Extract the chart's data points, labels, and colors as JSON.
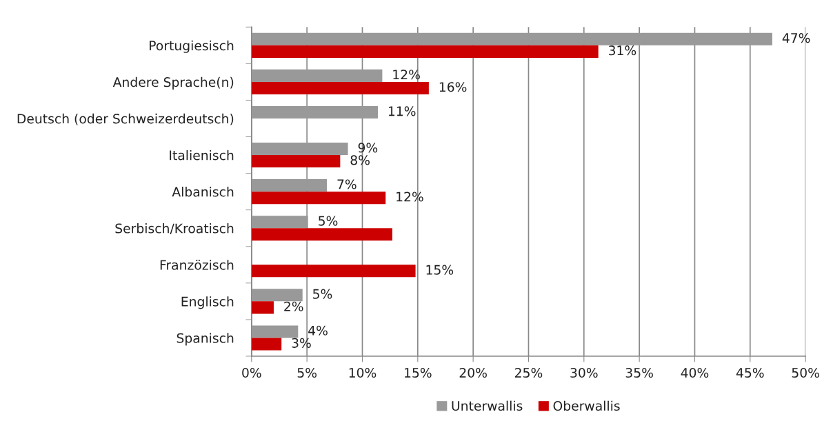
{
  "chart_data": {
    "type": "bar",
    "orientation": "horizontal",
    "categories": [
      "Portugiesisch",
      "Andere Sprache(n)",
      "Deutsch (oder Schweizerdeutsch)",
      "Italienisch",
      "Albanisch",
      "Serbisch/Kroatisch",
      "Franzözisch",
      "Englisch",
      "Spanisch"
    ],
    "series": [
      {
        "name": "Unterwallis",
        "color": "#999999",
        "values": [
          47.0,
          11.8,
          11.4,
          8.7,
          6.8,
          5.1,
          null,
          4.6,
          4.2
        ],
        "value_labels": [
          "47%",
          "12%",
          "11%",
          "9%",
          "7%",
          "5%",
          null,
          "5%",
          "4%"
        ]
      },
      {
        "name": "Oberwallis",
        "color": "#cc0000",
        "values": [
          31.3,
          16.0,
          null,
          8.0,
          12.1,
          12.7,
          14.8,
          2.0,
          2.7
        ],
        "value_labels": [
          "31%",
          "16%",
          null,
          "8%",
          "12%",
          null,
          "15%",
          "2%",
          "3%"
        ]
      }
    ],
    "xlim": [
      0,
      50
    ],
    "xticks": [
      {
        "value": 0,
        "label": "0%"
      },
      {
        "value": 5,
        "label": "5%"
      },
      {
        "value": 10,
        "label": "10%"
      },
      {
        "value": 15,
        "label": "15%"
      },
      {
        "value": 20,
        "label": "20%"
      },
      {
        "value": 25,
        "label": "25%"
      },
      {
        "value": 30,
        "label": "30%"
      },
      {
        "value": 35,
        "label": "35%"
      },
      {
        "value": 40,
        "label": "40%"
      },
      {
        "value": 45,
        "label": "45%"
      },
      {
        "value": 50,
        "label": "50%"
      }
    ],
    "grid": "x",
    "legend": "bottom"
  }
}
